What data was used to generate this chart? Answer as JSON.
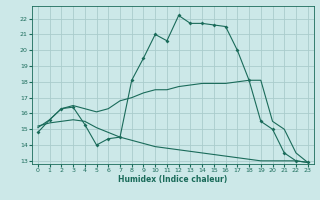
{
  "title": "",
  "xlabel": "Humidex (Indice chaleur)",
  "background_color": "#cce8e8",
  "grid_color": "#aacccc",
  "line_color": "#1a6b5a",
  "xlim": [
    -0.5,
    23.5
  ],
  "ylim": [
    12.8,
    22.8
  ],
  "yticks": [
    13,
    14,
    15,
    16,
    17,
    18,
    19,
    20,
    21,
    22
  ],
  "xticks": [
    0,
    1,
    2,
    3,
    4,
    5,
    6,
    7,
    8,
    9,
    10,
    11,
    12,
    13,
    14,
    15,
    16,
    17,
    18,
    19,
    20,
    21,
    22,
    23
  ],
  "line1_x": [
    0,
    1,
    2,
    3,
    4,
    5,
    6,
    7,
    8,
    9,
    10,
    11,
    12,
    13,
    14,
    15,
    16,
    17,
    18,
    19,
    20,
    21,
    22,
    23
  ],
  "line1_y": [
    14.8,
    15.6,
    16.3,
    16.4,
    15.3,
    14.0,
    14.4,
    14.5,
    18.1,
    19.5,
    21.0,
    20.6,
    22.2,
    21.7,
    21.7,
    21.6,
    21.5,
    20.0,
    18.1,
    15.5,
    15.0,
    13.5,
    13.0,
    12.9
  ],
  "line2_x": [
    0,
    1,
    2,
    3,
    4,
    5,
    6,
    7,
    8,
    9,
    10,
    11,
    12,
    13,
    14,
    15,
    16,
    17,
    18,
    19,
    20,
    21,
    22,
    23
  ],
  "line2_y": [
    15.1,
    15.6,
    16.3,
    16.5,
    16.3,
    16.1,
    16.3,
    16.8,
    17.0,
    17.3,
    17.5,
    17.5,
    17.7,
    17.8,
    17.9,
    17.9,
    17.9,
    18.0,
    18.1,
    18.1,
    15.5,
    15.0,
    13.5,
    12.9
  ],
  "line3_x": [
    0,
    1,
    2,
    3,
    4,
    5,
    6,
    7,
    8,
    9,
    10,
    11,
    12,
    13,
    14,
    15,
    16,
    17,
    18,
    19,
    20,
    21,
    22,
    23
  ],
  "line3_y": [
    15.2,
    15.4,
    15.5,
    15.6,
    15.5,
    15.1,
    14.8,
    14.5,
    14.3,
    14.1,
    13.9,
    13.8,
    13.7,
    13.6,
    13.5,
    13.4,
    13.3,
    13.2,
    13.1,
    13.0,
    13.0,
    13.0,
    13.0,
    12.9
  ]
}
